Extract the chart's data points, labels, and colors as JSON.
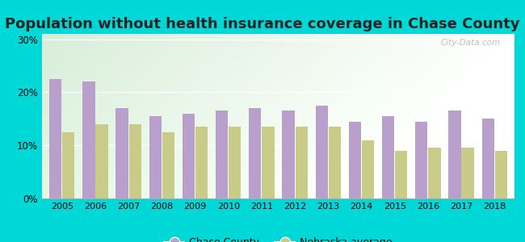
{
  "title": "Population without health insurance coverage in Chase County",
  "years": [
    2005,
    2006,
    2007,
    2008,
    2009,
    2010,
    2011,
    2012,
    2013,
    2014,
    2015,
    2016,
    2017,
    2018
  ],
  "chase_county": [
    0.225,
    0.22,
    0.17,
    0.155,
    0.16,
    0.165,
    0.17,
    0.165,
    0.175,
    0.145,
    0.155,
    0.145,
    0.165,
    0.15
  ],
  "nebraska_avg": [
    0.125,
    0.14,
    0.14,
    0.125,
    0.135,
    0.135,
    0.135,
    0.135,
    0.135,
    0.11,
    0.09,
    0.095,
    0.095,
    0.09
  ],
  "chase_color": "#b89fcc",
  "nebraska_color": "#c8cc88",
  "bg_color": "#00d8d8",
  "title_fontsize": 13,
  "ylim": [
    0,
    0.31
  ],
  "yticks": [
    0.0,
    0.1,
    0.2,
    0.3
  ],
  "watermark": "City-Data.com",
  "legend_chase": "Chase County",
  "legend_nebraska": "Nebraska average",
  "bar_width": 0.37,
  "bar_gap": 0.02
}
